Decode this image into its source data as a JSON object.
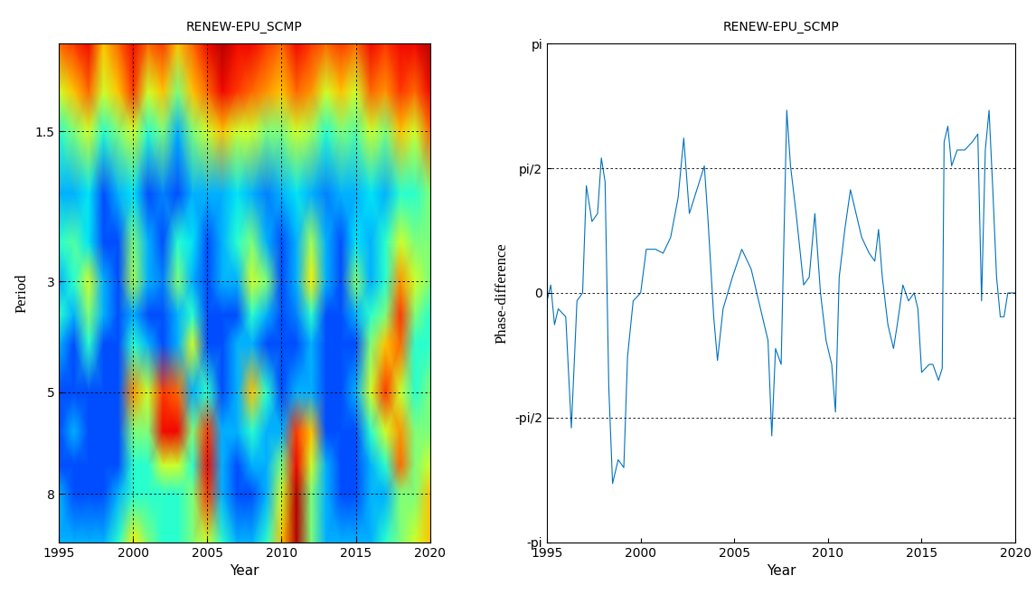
{
  "chart_data": [
    {
      "type": "heatmap",
      "title": "RENEW-EPU_SCMP",
      "x_label": "Year",
      "y_label": "Period",
      "x": [
        1995,
        1996,
        1997,
        1998,
        1999,
        2000,
        2001,
        2002,
        2003,
        2004,
        2005,
        2006,
        2007,
        2008,
        2009,
        2010,
        2011,
        2012,
        2013,
        2014,
        2015,
        2016,
        2017,
        2018,
        2019,
        2020
      ],
      "periods": [
        1,
        1.25,
        1.5,
        2,
        2.5,
        3,
        3.5,
        4,
        5,
        6,
        7,
        8,
        10
      ],
      "coherence": [
        [
          0.8,
          0.85,
          0.9,
          0.7,
          0.8,
          0.9,
          0.8,
          0.85,
          0.7,
          0.8,
          0.9,
          0.95,
          0.9,
          0.9,
          0.85,
          0.8,
          0.9,
          0.85,
          0.8,
          0.85,
          0.8,
          0.9,
          0.85,
          0.9,
          0.9,
          0.95
        ],
        [
          0.6,
          0.7,
          0.8,
          0.6,
          0.7,
          0.85,
          0.6,
          0.7,
          0.5,
          0.7,
          0.8,
          0.9,
          0.85,
          0.8,
          0.75,
          0.7,
          0.8,
          0.75,
          0.6,
          0.7,
          0.6,
          0.8,
          0.75,
          0.85,
          0.8,
          0.9
        ],
        [
          0.4,
          0.5,
          0.6,
          0.4,
          0.5,
          0.6,
          0.4,
          0.5,
          0.3,
          0.5,
          0.6,
          0.7,
          0.6,
          0.6,
          0.5,
          0.5,
          0.6,
          0.55,
          0.4,
          0.5,
          0.45,
          0.6,
          0.5,
          0.7,
          0.6,
          0.8
        ],
        [
          0.3,
          0.3,
          0.35,
          0.2,
          0.3,
          0.35,
          0.2,
          0.25,
          0.2,
          0.3,
          0.3,
          0.3,
          0.35,
          0.3,
          0.25,
          0.3,
          0.35,
          0.3,
          0.25,
          0.3,
          0.3,
          0.35,
          0.3,
          0.4,
          0.4,
          0.5
        ],
        [
          0.4,
          0.45,
          0.35,
          0.2,
          0.2,
          0.5,
          0.3,
          0.2,
          0.4,
          0.35,
          0.2,
          0.3,
          0.4,
          0.5,
          0.3,
          0.2,
          0.3,
          0.55,
          0.3,
          0.2,
          0.35,
          0.3,
          0.4,
          0.6,
          0.5,
          0.5
        ],
        [
          0.3,
          0.4,
          0.6,
          0.3,
          0.2,
          0.55,
          0.3,
          0.25,
          0.5,
          0.3,
          0.2,
          0.3,
          0.3,
          0.6,
          0.5,
          0.2,
          0.3,
          0.65,
          0.3,
          0.2,
          0.5,
          0.3,
          0.4,
          0.75,
          0.6,
          0.5
        ],
        [
          0.4,
          0.3,
          0.5,
          0.3,
          0.2,
          0.3,
          0.2,
          0.2,
          0.3,
          0.4,
          0.2,
          0.2,
          0.2,
          0.4,
          0.3,
          0.2,
          0.25,
          0.4,
          0.2,
          0.2,
          0.3,
          0.4,
          0.5,
          0.85,
          0.5,
          0.4
        ],
        [
          0.3,
          0.2,
          0.4,
          0.2,
          0.2,
          0.4,
          0.3,
          0.2,
          0.3,
          0.6,
          0.2,
          0.2,
          0.3,
          0.3,
          0.2,
          0.2,
          0.2,
          0.3,
          0.2,
          0.2,
          0.2,
          0.5,
          0.7,
          0.8,
          0.4,
          0.4
        ],
        [
          0.2,
          0.2,
          0.2,
          0.2,
          0.2,
          0.75,
          0.6,
          0.85,
          0.8,
          0.3,
          0.4,
          0.2,
          0.3,
          0.7,
          0.4,
          0.2,
          0.3,
          0.3,
          0.2,
          0.2,
          0.3,
          0.6,
          0.85,
          0.6,
          0.4,
          0.5
        ],
        [
          0.2,
          0.3,
          0.2,
          0.2,
          0.2,
          0.5,
          0.5,
          0.9,
          0.9,
          0.5,
          0.85,
          0.3,
          0.3,
          0.4,
          0.3,
          0.3,
          0.85,
          0.7,
          0.2,
          0.2,
          0.2,
          0.4,
          0.6,
          0.75,
          0.5,
          0.5
        ],
        [
          0.2,
          0.2,
          0.2,
          0.2,
          0.2,
          0.4,
          0.4,
          0.6,
          0.6,
          0.4,
          0.9,
          0.3,
          0.2,
          0.3,
          0.3,
          0.5,
          0.9,
          0.6,
          0.3,
          0.2,
          0.2,
          0.3,
          0.4,
          0.8,
          0.5,
          0.6
        ],
        [
          0.3,
          0.2,
          0.2,
          0.2,
          0.3,
          0.4,
          0.4,
          0.4,
          0.4,
          0.5,
          0.85,
          0.3,
          0.2,
          0.2,
          0.3,
          0.6,
          0.95,
          0.5,
          0.3,
          0.2,
          0.2,
          0.3,
          0.3,
          0.5,
          0.5,
          0.7
        ],
        [
          0.3,
          0.3,
          0.3,
          0.3,
          0.4,
          0.65,
          0.5,
          0.4,
          0.4,
          0.5,
          0.6,
          0.4,
          0.3,
          0.3,
          0.4,
          0.7,
          0.95,
          0.5,
          0.3,
          0.3,
          0.3,
          0.3,
          0.4,
          0.5,
          0.6,
          0.7
        ]
      ],
      "clim": [
        0,
        1
      ],
      "color": "jet",
      "log": "y",
      "grid": true,
      "xlim": [
        1995,
        2020
      ],
      "xticks": [
        1995,
        2000,
        2005,
        2010,
        2015,
        2020
      ],
      "ylim": [
        10,
        1
      ],
      "yticks": [
        1.5,
        3,
        5,
        8
      ]
    },
    {
      "type": "line",
      "title": "RENEW-EPU_SCMP",
      "x_label": "Year",
      "y_label": "Phase-difference",
      "x": [
        1995.0,
        1995.2,
        1995.4,
        1995.6,
        1996.0,
        1996.3,
        1996.6,
        1996.9,
        1997.1,
        1997.4,
        1997.7,
        1997.9,
        1998.1,
        1998.3,
        1998.5,
        1998.8,
        1999.1,
        1999.3,
        1999.6,
        2000.0,
        2000.3,
        2000.8,
        2001.2,
        2001.6,
        2002.0,
        2002.3,
        2002.6,
        2003.0,
        2003.4,
        2003.6,
        2003.9,
        2004.1,
        2004.4,
        2004.9,
        2005.4,
        2005.9,
        2006.4,
        2006.8,
        2007.0,
        2007.2,
        2007.5,
        2007.8,
        2008.0,
        2008.3,
        2008.7,
        2009.0,
        2009.3,
        2009.6,
        2009.9,
        2010.2,
        2010.4,
        2010.6,
        2010.9,
        2011.2,
        2011.5,
        2011.8,
        2012.2,
        2012.5,
        2012.7,
        2012.9,
        2013.2,
        2013.5,
        2013.7,
        2014.0,
        2014.3,
        2014.6,
        2014.8,
        2015.0,
        2015.4,
        2015.6,
        2015.9,
        2016.1,
        2016.2,
        2016.4,
        2016.6,
        2016.9,
        2017.3,
        2017.7,
        2018.0,
        2018.2,
        2018.4,
        2018.6,
        2018.8,
        2019.0,
        2019.2,
        2019.4,
        2019.6,
        2020.0
      ],
      "values": [
        -0.1,
        0.1,
        -0.4,
        -0.2,
        -0.3,
        -1.7,
        -0.1,
        0.0,
        1.35,
        0.9,
        1.0,
        1.7,
        1.4,
        -1.2,
        -2.4,
        -2.1,
        -2.2,
        -0.8,
        -0.1,
        0.0,
        0.55,
        0.55,
        0.5,
        0.7,
        1.2,
        1.95,
        1.0,
        1.3,
        1.6,
        0.9,
        -0.3,
        -0.85,
        -0.2,
        0.2,
        0.55,
        0.3,
        -0.2,
        -0.6,
        -1.8,
        -0.7,
        -0.9,
        2.3,
        1.6,
        1.0,
        0.1,
        0.2,
        1.0,
        0.0,
        -0.6,
        -0.9,
        -1.5,
        0.2,
        0.8,
        1.3,
        1.0,
        0.7,
        0.5,
        0.4,
        0.8,
        0.2,
        -0.4,
        -0.7,
        -0.4,
        0.1,
        -0.1,
        0.0,
        -0.2,
        -1.0,
        -0.9,
        -0.9,
        -1.1,
        -0.95,
        1.9,
        2.1,
        1.6,
        1.8,
        1.8,
        1.9,
        2.0,
        -0.1,
        1.8,
        2.3,
        1.3,
        0.2,
        -0.3,
        -0.3,
        0.0,
        0.0
      ],
      "color": "#0072bd",
      "grid": "y",
      "xlim": [
        1995,
        2020
      ],
      "xticks": [
        1995,
        2000,
        2005,
        2010,
        2015,
        2020
      ],
      "ylim": [
        -3.14159,
        3.14159
      ],
      "yticks": [
        {
          "value": -3.14159,
          "label": "-pi"
        },
        {
          "value": -1.5708,
          "label": "-pi/2"
        },
        0,
        {
          "value": 1.5708,
          "label": "pi/2"
        },
        {
          "value": 3.14159,
          "label": "pi"
        }
      ]
    }
  ]
}
